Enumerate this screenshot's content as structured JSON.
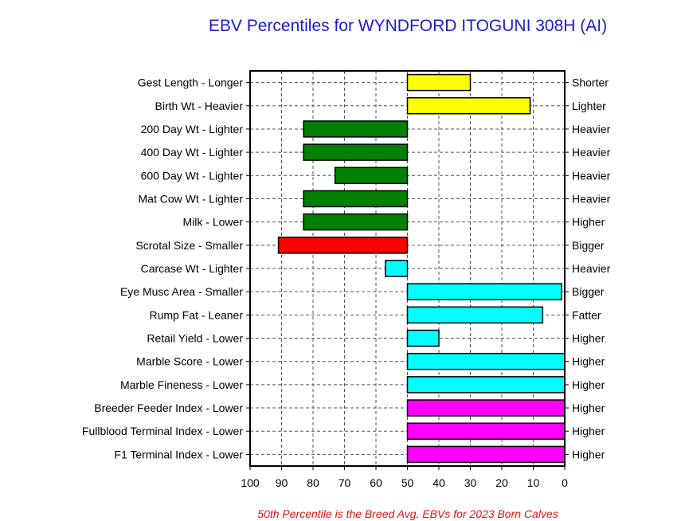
{
  "chart_data": {
    "type": "bar",
    "orientation": "horizontal",
    "title": "EBV Percentiles for WYNDFORD ITOGUNI 308H (AI)",
    "footnote": "50th Percentile is the Breed Avg. EBVs for 2023 Born Calves",
    "xlim": [
      100,
      0
    ],
    "baseline": 50,
    "x_ticks": [
      "100",
      "90",
      "80",
      "70",
      "60",
      "50",
      "40",
      "30",
      "20",
      "10",
      "0"
    ],
    "grid": true,
    "colors": {
      "yellow": "#ffff00",
      "green": "#008000",
      "red": "#ff0000",
      "cyan": "#00ffff",
      "magenta": "#ff00ff"
    },
    "rows": [
      {
        "left": "Gest Length - Longer",
        "right": "Shorter",
        "value": 30,
        "color": "yellow"
      },
      {
        "left": "Birth Wt - Heavier",
        "right": "Lighter",
        "value": 11,
        "color": "yellow"
      },
      {
        "left": "200 Day Wt - Lighter",
        "right": "Heavier",
        "value": 83,
        "color": "green"
      },
      {
        "left": "400 Day Wt - Lighter",
        "right": "Heavier",
        "value": 83,
        "color": "green"
      },
      {
        "left": "600 Day Wt - Lighter",
        "right": "Heavier",
        "value": 73,
        "color": "green"
      },
      {
        "left": "Mat Cow Wt - Lighter",
        "right": "Heavier",
        "value": 83,
        "color": "green"
      },
      {
        "left": "Milk - Lower",
        "right": "Higher",
        "value": 83,
        "color": "green"
      },
      {
        "left": "Scrotal Size - Smaller",
        "right": "Bigger",
        "value": 91,
        "color": "red"
      },
      {
        "left": "Carcase Wt - Lighter",
        "right": "Heavier",
        "value": 57,
        "color": "cyan"
      },
      {
        "left": "Eye Musc Area - Smaller",
        "right": "Bigger",
        "value": 1,
        "color": "cyan"
      },
      {
        "left": "Rump Fat - Leaner",
        "right": "Fatter",
        "value": 7,
        "color": "cyan"
      },
      {
        "left": "Retail Yield - Lower",
        "right": "Higher",
        "value": 40,
        "color": "cyan"
      },
      {
        "left": "Marble Score - Lower",
        "right": "Higher",
        "value": 0,
        "color": "cyan"
      },
      {
        "left": "Marble Fineness - Lower",
        "right": "Higher",
        "value": 0,
        "color": "cyan"
      },
      {
        "left": "Breeder Feeder Index - Lower",
        "right": "Higher",
        "value": 0,
        "color": "magenta"
      },
      {
        "left": "Fullblood Terminal Index - Lower",
        "right": "Higher",
        "value": 0,
        "color": "magenta"
      },
      {
        "left": "F1 Terminal Index - Lower",
        "right": "Higher",
        "value": 0,
        "color": "magenta"
      }
    ]
  }
}
